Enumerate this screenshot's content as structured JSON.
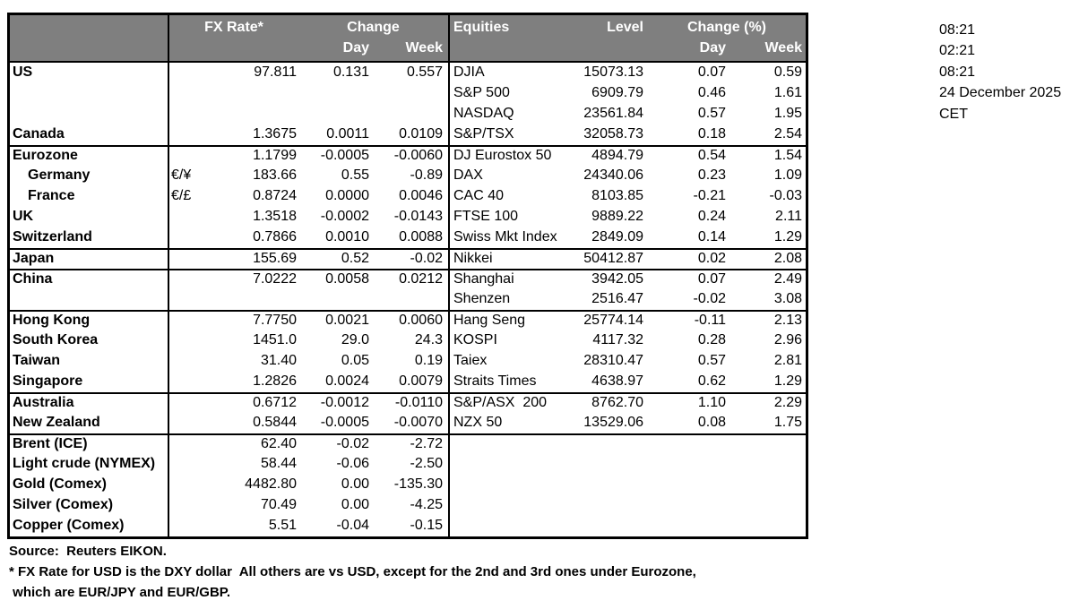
{
  "colors": {
    "header_bg": "#7f7f7f",
    "header_text": "#ffffff",
    "border": "#000000",
    "text": "#000000"
  },
  "header": {
    "fx_rate": "FX Rate*",
    "change": "Change",
    "fx_day": "Day",
    "fx_week": "Week",
    "equities": "Equities",
    "level": "Level",
    "change_pct": "Change (%)",
    "eq_day": "Day",
    "eq_week": "Week"
  },
  "rows": [
    {
      "label": "US",
      "indent": false,
      "pair": "",
      "fx_rate": "97.811",
      "fx_day": "0.131",
      "fx_week": "0.557",
      "eq_name": "DJIA",
      "eq_level": "15073.13",
      "eq_day": "0.07",
      "eq_week": "0.59",
      "sep": false
    },
    {
      "label": "",
      "indent": false,
      "pair": "",
      "fx_rate": "",
      "fx_day": "",
      "fx_week": "",
      "eq_name": "S&P 500",
      "eq_level": "6909.79",
      "eq_day": "0.46",
      "eq_week": "1.61",
      "sep": false
    },
    {
      "label": "",
      "indent": false,
      "pair": "",
      "fx_rate": "",
      "fx_day": "",
      "fx_week": "",
      "eq_name": "NASDAQ",
      "eq_level": "23561.84",
      "eq_day": "0.57",
      "eq_week": "1.95",
      "sep": false
    },
    {
      "label": "Canada",
      "indent": false,
      "pair": "",
      "fx_rate": "1.3675",
      "fx_day": "0.0011",
      "fx_week": "0.0109",
      "eq_name": "S&P/TSX",
      "eq_level": "32058.73",
      "eq_day": "0.18",
      "eq_week": "2.54",
      "sep": false
    },
    {
      "label": "Eurozone",
      "indent": false,
      "pair": "",
      "fx_rate": "1.1799",
      "fx_day": "-0.0005",
      "fx_week": "-0.0060",
      "eq_name": "DJ Eurostox 50",
      "eq_level": "4894.79",
      "eq_day": "0.54",
      "eq_week": "1.54",
      "sep": true
    },
    {
      "label": "Germany",
      "indent": true,
      "pair": "€/¥",
      "fx_rate": "183.66",
      "fx_day": "0.55",
      "fx_week": "-0.89",
      "eq_name": "DAX",
      "eq_level": "24340.06",
      "eq_day": "0.23",
      "eq_week": "1.09",
      "sep": false
    },
    {
      "label": "France",
      "indent": true,
      "pair": "€/£",
      "fx_rate": "0.8724",
      "fx_day": "0.0000",
      "fx_week": "0.0046",
      "eq_name": "CAC 40",
      "eq_level": "8103.85",
      "eq_day": "-0.21",
      "eq_week": "-0.03",
      "sep": false
    },
    {
      "label": "UK",
      "indent": false,
      "pair": "",
      "fx_rate": "1.3518",
      "fx_day": "-0.0002",
      "fx_week": "-0.0143",
      "eq_name": "FTSE 100",
      "eq_level": "9889.22",
      "eq_day": "0.24",
      "eq_week": "2.11",
      "sep": false
    },
    {
      "label": "Switzerland",
      "indent": false,
      "pair": "",
      "fx_rate": "0.7866",
      "fx_day": "0.0010",
      "fx_week": "0.0088",
      "eq_name": "Swiss Mkt Index",
      "eq_level": "2849.09",
      "eq_day": "0.14",
      "eq_week": "1.29",
      "sep": false
    },
    {
      "label": "Japan",
      "indent": false,
      "pair": "",
      "fx_rate": "155.69",
      "fx_day": "0.52",
      "fx_week": "-0.02",
      "eq_name": "Nikkei",
      "eq_level": "50412.87",
      "eq_day": "0.02",
      "eq_week": "2.08",
      "sep": true
    },
    {
      "label": "China",
      "indent": false,
      "pair": "",
      "fx_rate": "7.0222",
      "fx_day": "0.0058",
      "fx_week": "0.0212",
      "eq_name": "Shanghai",
      "eq_level": "3942.05",
      "eq_day": "0.07",
      "eq_week": "2.49",
      "sep": true
    },
    {
      "label": "",
      "indent": false,
      "pair": "",
      "fx_rate": "",
      "fx_day": "",
      "fx_week": "",
      "eq_name": "Shenzen",
      "eq_level": "2516.47",
      "eq_day": "-0.02",
      "eq_week": "3.08",
      "sep": false
    },
    {
      "label": "Hong Kong",
      "indent": false,
      "pair": "",
      "fx_rate": "7.7750",
      "fx_day": "0.0021",
      "fx_week": "0.0060",
      "eq_name": "Hang Seng",
      "eq_level": "25774.14",
      "eq_day": "-0.11",
      "eq_week": "2.13",
      "sep": true
    },
    {
      "label": "South Korea",
      "indent": false,
      "pair": "",
      "fx_rate": "1451.0",
      "fx_day": "29.0",
      "fx_week": "24.3",
      "eq_name": "KOSPI",
      "eq_level": "4117.32",
      "eq_day": "0.28",
      "eq_week": "2.96",
      "sep": false
    },
    {
      "label": "Taiwan",
      "indent": false,
      "pair": "",
      "fx_rate": "31.40",
      "fx_day": "0.05",
      "fx_week": "0.19",
      "eq_name": "Taiex",
      "eq_level": "28310.47",
      "eq_day": "0.57",
      "eq_week": "2.81",
      "sep": false
    },
    {
      "label": "Singapore",
      "indent": false,
      "pair": "",
      "fx_rate": "1.2826",
      "fx_day": "0.0024",
      "fx_week": "0.0079",
      "eq_name": "Straits Times",
      "eq_level": "4638.97",
      "eq_day": "0.62",
      "eq_week": "1.29",
      "sep": false
    },
    {
      "label": "Australia",
      "indent": false,
      "pair": "",
      "fx_rate": "0.6712",
      "fx_day": "-0.0012",
      "fx_week": "-0.0110",
      "eq_name": "S&P/ASX  200",
      "eq_level": "8762.70",
      "eq_day": "1.10",
      "eq_week": "2.29",
      "sep": true
    },
    {
      "label": "New Zealand",
      "indent": false,
      "pair": "",
      "fx_rate": "0.5844",
      "fx_day": "-0.0005",
      "fx_week": "-0.0070",
      "eq_name": "NZX 50",
      "eq_level": "13529.06",
      "eq_day": "0.08",
      "eq_week": "1.75",
      "sep": false
    },
    {
      "label": "Brent (ICE)",
      "indent": false,
      "pair": "",
      "fx_rate": "62.40",
      "fx_day": "-0.02",
      "fx_week": "-2.72",
      "eq_name": "",
      "eq_level": "",
      "eq_day": "",
      "eq_week": "",
      "sep": true
    },
    {
      "label": "Light crude (NYMEX)",
      "indent": false,
      "pair": "",
      "fx_rate": "58.44",
      "fx_day": "-0.06",
      "fx_week": "-2.50",
      "eq_name": "",
      "eq_level": "",
      "eq_day": "",
      "eq_week": "",
      "sep": false
    },
    {
      "label": "Gold (Comex)",
      "indent": false,
      "pair": "",
      "fx_rate": "4482.80",
      "fx_day": "0.00",
      "fx_week": "-135.30",
      "eq_name": "",
      "eq_level": "",
      "eq_day": "",
      "eq_week": "",
      "sep": false
    },
    {
      "label": "Silver (Comex)",
      "indent": false,
      "pair": "",
      "fx_rate": "70.49",
      "fx_day": "0.00",
      "fx_week": "-4.25",
      "eq_name": "",
      "eq_level": "",
      "eq_day": "",
      "eq_week": "",
      "sep": false
    },
    {
      "label": "Copper (Comex)",
      "indent": false,
      "pair": "",
      "fx_rate": "5.51",
      "fx_day": "-0.04",
      "fx_week": "-0.15",
      "eq_name": "",
      "eq_level": "",
      "eq_day": "",
      "eq_week": "",
      "sep": false
    }
  ],
  "timestamps": [
    "08:21",
    "02:21",
    "08:21",
    "24 December 2025",
    "CET"
  ],
  "footer": {
    "source": "Source:  Reuters EIKON.",
    "footnote1": "* FX Rate for USD is the DXY dollar  All others are vs USD, except for the 2nd and 3rd ones under Eurozone,",
    "footnote2": " which are EUR/JPY and EUR/GBP."
  }
}
